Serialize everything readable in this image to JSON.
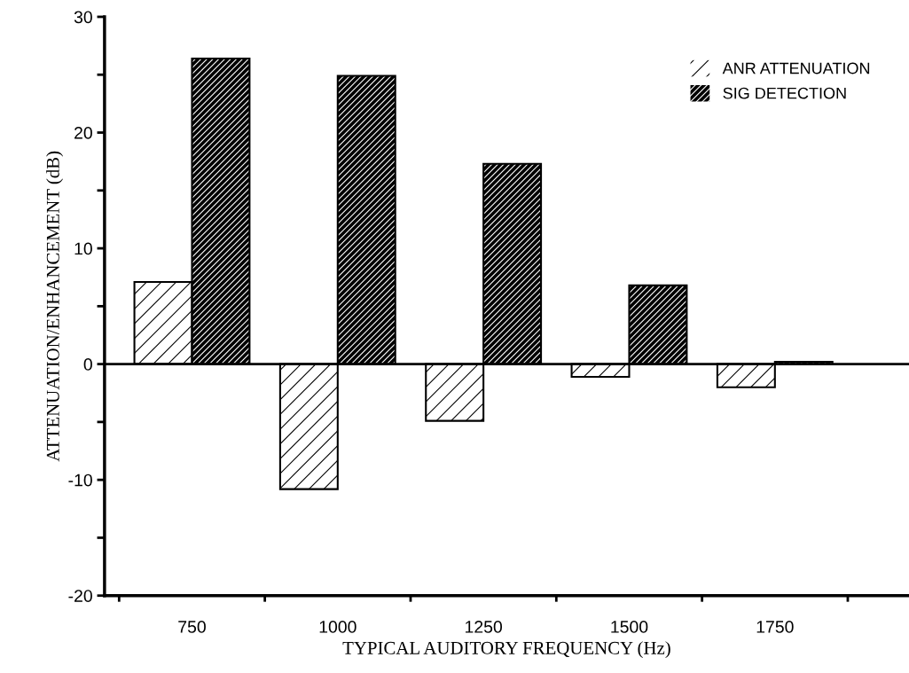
{
  "chart_data": {
    "type": "bar",
    "xlabel": "TYPICAL AUDITORY FREQUENCY (Hz)",
    "ylabel": "ATTENUATION/ENHANCEMENT (dB)",
    "categories": [
      "750",
      "1000",
      "1250",
      "1500",
      "1750"
    ],
    "series": [
      {
        "name": "ANR ATTENUATION",
        "color": "#ffffff",
        "values": [
          7.1,
          -10.8,
          -4.9,
          -1.1,
          -2.0
        ]
      },
      {
        "name": "SIG DETECTION",
        "color": "#000000",
        "values": [
          26.4,
          24.9,
          17.3,
          6.8,
          0.2
        ]
      }
    ],
    "ylim": [
      -20,
      30
    ],
    "yticks": [
      -20,
      {
        "value": -15,
        "label": null
      },
      -10,
      {
        "value": -5,
        "label": null
      },
      0,
      {
        "value": 5,
        "label": null
      },
      10,
      {
        "value": 15,
        "label": null
      },
      20,
      {
        "value": 25,
        "label": null
      },
      30
    ],
    "ref_lines": [
      {
        "axis": "y",
        "value": 0,
        "color": "#000000"
      }
    ],
    "grid": false,
    "legend": "top right"
  }
}
